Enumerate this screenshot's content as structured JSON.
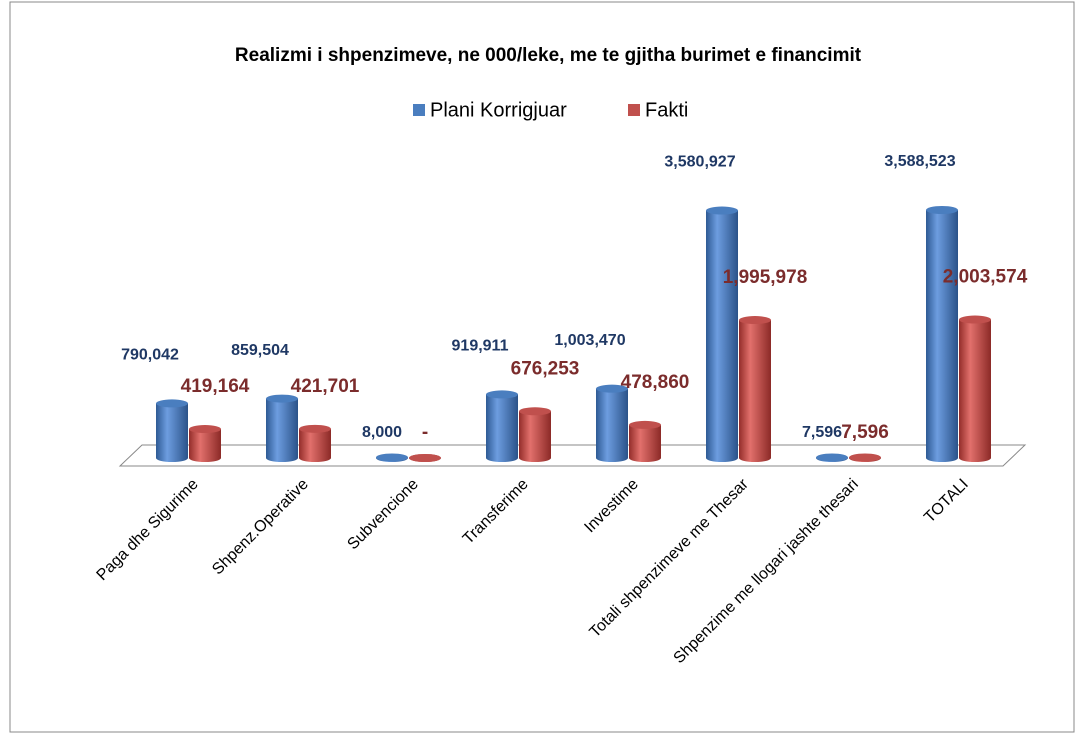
{
  "chart_data": {
    "type": "bar3d",
    "title": "Realizmi i shpenzimeve, ne 000/leke, me  te gjitha burimet e  financimit",
    "categories": [
      "Paga dhe Sigurime",
      "Shpenz.Operative",
      "Subvencione",
      "Transferime",
      "Investime",
      "Totali shpenzimeve me Thesar",
      "Shpenzime me llogari jashte thesari",
      "TOTALI"
    ],
    "series": [
      {
        "name": "Plani Korrigjuar",
        "color": "#4a7ebf",
        "values": [
          790042,
          859504,
          8000,
          919911,
          1003470,
          3580927,
          7596,
          3588523
        ],
        "value_labels": [
          "790,042",
          "859,504",
          "8,000",
          "919,911",
          "1,003,470",
          "3,580,927",
          "7,596",
          "3,588,523"
        ]
      },
      {
        "name": "Fakti",
        "color": "#c0504d",
        "values": [
          419164,
          421701,
          0,
          676253,
          478860,
          1995978,
          7596,
          2003574
        ],
        "value_labels": [
          "419,164",
          "421,701",
          "-",
          "676,253",
          "478,860",
          "1,995,978",
          "7,596",
          "2,003,574"
        ]
      }
    ],
    "legend": "top"
  }
}
